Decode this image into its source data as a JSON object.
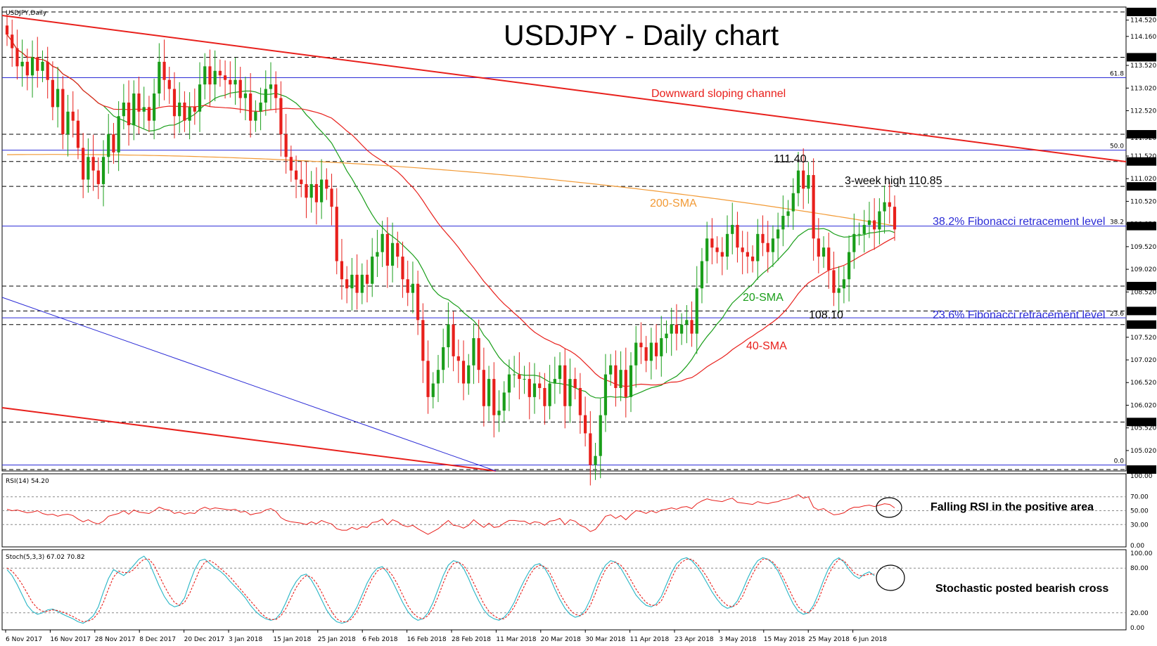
{
  "chart_data": [
    {
      "type": "candlestick",
      "symbol_label": "USDJPY,Daily",
      "title": "USDJPY - Daily chart",
      "ylim": [
        104.6,
        114.7
      ],
      "price_ticks": [
        "114.520",
        "114.160",
        "113.520",
        "113.020",
        "112.520",
        "111.920",
        "111.520",
        "111.020",
        "110.520",
        "110.020",
        "109.520",
        "109.020",
        "108.520",
        "107.520",
        "107.020",
        "106.520",
        "106.020",
        "105.520",
        "105.020"
      ],
      "highlight_levels": [
        {
          "label": "114.700",
          "value": 114.7,
          "style": "dash"
        },
        {
          "label": "113.700",
          "value": 113.7,
          "style": "dash"
        },
        {
          "label": "112.000",
          "value": 112.0,
          "style": "dash"
        },
        {
          "label": "111.400",
          "value": 111.4,
          "style": "dash"
        },
        {
          "label": "110.850",
          "value": 110.85,
          "style": "dash"
        },
        {
          "label": "108.650",
          "value": 108.65,
          "style": "dash"
        },
        {
          "label": "108.100",
          "value": 108.1,
          "style": "dash"
        },
        {
          "label": "107.800",
          "value": 107.8,
          "style": "dash"
        },
        {
          "label": "105.650",
          "value": 105.65,
          "style": "dash"
        },
        {
          "label": "104.600",
          "value": 104.6,
          "style": "dash"
        }
      ],
      "current_price": {
        "label": "109.974",
        "value": 109.974
      },
      "fibonacci": [
        {
          "label": "61.8",
          "value": 113.25
        },
        {
          "label": "50.0",
          "value": 111.65
        },
        {
          "label": "38.2",
          "value": 109.974
        },
        {
          "label": "23.6",
          "value": 107.95
        },
        {
          "label": "0.0",
          "value": 104.7
        }
      ],
      "x_labels": [
        "6 Nov 2017",
        "16 Nov 2017",
        "28 Nov 2017",
        "8 Dec 2017",
        "20 Dec 2017",
        "3 Jan 2018",
        "15 Jan 2018",
        "25 Jan 2018",
        "6 Feb 2018",
        "16 Feb 2018",
        "28 Feb 2018",
        "11 Mar 2018",
        "20 Mar 2018",
        "30 Mar 2018",
        "11 Apr 2018",
        "23 Apr 2018",
        "3 May 2018",
        "15 May 2018",
        "25 May 2018",
        "6 Jun 2018"
      ],
      "closes": [
        114.2,
        113.9,
        113.5,
        113.6,
        113.3,
        113.7,
        113.4,
        113.6,
        113.2,
        112.6,
        113.0,
        112.0,
        112.5,
        112.3,
        111.7,
        111.0,
        111.5,
        111.2,
        110.9,
        111.5,
        112.0,
        111.6,
        112.4,
        112.7,
        112.2,
        112.9,
        112.5,
        112.6,
        112.3,
        112.9,
        113.6,
        113.2,
        113.0,
        112.4,
        112.7,
        112.3,
        112.6,
        112.5,
        113.1,
        113.5,
        113.1,
        113.4,
        113.3,
        113.2,
        113.1,
        113.2,
        112.8,
        112.9,
        112.3,
        112.5,
        112.7,
        113.0,
        113.1,
        112.8,
        112.0,
        111.5,
        111.2,
        111.0,
        110.9,
        110.6,
        110.9,
        110.5,
        111.0,
        110.8,
        110.4,
        109.2,
        108.8,
        108.6,
        108.9,
        108.5,
        108.9,
        108.7,
        109.3,
        109.4,
        109.8,
        109.1,
        109.6,
        109.3,
        108.8,
        108.5,
        108.7,
        107.9,
        107.0,
        106.2,
        106.5,
        106.8,
        107.3,
        107.8,
        107.1,
        107.0,
        106.5,
        106.9,
        107.5,
        106.8,
        106.0,
        106.6,
        105.8,
        105.9,
        106.3,
        106.7,
        106.7,
        106.6,
        106.6,
        106.2,
        106.5,
        106.4,
        106.0,
        106.5,
        106.6,
        106.9,
        106.0,
        106.6,
        106.4,
        105.8,
        105.4,
        104.7,
        104.9,
        105.8,
        106.7,
        106.9,
        106.4,
        106.8,
        106.2,
        106.9,
        107.4,
        107.3,
        107.0,
        107.4,
        107.1,
        107.5,
        107.6,
        107.8,
        107.6,
        107.8,
        107.9,
        107.6,
        108.6,
        109.2,
        109.7,
        109.5,
        109.4,
        109.3,
        109.8,
        110.0,
        109.5,
        109.4,
        109.3,
        109.2,
        109.8,
        109.6,
        109.4,
        109.7,
        109.9,
        110.2,
        110.3,
        110.7,
        111.2,
        110.8,
        111.1,
        109.7,
        109.3,
        109.5,
        109.0,
        108.5,
        108.6,
        108.8,
        109.4,
        109.8,
        109.8,
        110.0,
        110.1,
        109.9,
        110.3,
        110.5,
        110.4,
        109.9
      ],
      "series": [
        {
          "name": "20-SMA",
          "color": "#1a9e1a"
        },
        {
          "name": "40-SMA",
          "color": "#e8201c"
        },
        {
          "name": "200-SMA",
          "color": "#f29a35"
        }
      ],
      "annotations": [
        {
          "text": "Downward sloping channel",
          "color": "#e8201c"
        },
        {
          "text": "200-SMA",
          "color": "#f29a35"
        },
        {
          "text": "20-SMA",
          "color": "#1a9e1a"
        },
        {
          "text": "40-SMA",
          "color": "#e8201c"
        },
        {
          "text": "111.40",
          "color": "#000000"
        },
        {
          "text": "3-week high 110.85",
          "color": "#000000"
        },
        {
          "text": "38.2% Fibonacci retracement level",
          "color": "#2b2bd6"
        },
        {
          "text": "23.6% Fibonacci retracement level",
          "color": "#2b2bd6"
        },
        {
          "text": "108.10",
          "color": "#000000"
        }
      ],
      "colors": {
        "up": "#1a9e1a",
        "down": "#e8201c",
        "channel": "#e8201c",
        "fib": "#2b2bd6"
      }
    },
    {
      "type": "line",
      "label": "RSI(14) 54.20",
      "ylim": [
        0,
        100
      ],
      "ticks": [
        "100.00",
        "70.00",
        "50.00",
        "30.00",
        "0.00"
      ],
      "values": [
        52,
        50,
        51,
        49,
        47,
        48,
        50,
        46,
        44,
        45,
        42,
        44,
        45,
        43,
        38,
        34,
        37,
        33,
        31,
        35,
        42,
        44,
        46,
        50,
        45,
        51,
        48,
        47,
        46,
        50,
        55,
        52,
        51,
        46,
        48,
        45,
        47,
        46,
        52,
        55,
        52,
        54,
        53,
        52,
        51,
        52,
        48,
        49,
        44,
        46,
        47,
        51,
        53,
        49,
        40,
        36,
        34,
        33,
        32,
        30,
        34,
        31,
        36,
        33,
        31,
        24,
        22,
        22,
        26,
        23,
        27,
        26,
        33,
        34,
        38,
        30,
        37,
        34,
        29,
        27,
        29,
        24,
        20,
        16,
        20,
        24,
        30,
        36,
        29,
        28,
        25,
        29,
        37,
        31,
        26,
        32,
        26,
        27,
        32,
        36,
        36,
        35,
        35,
        31,
        34,
        33,
        29,
        35,
        36,
        39,
        30,
        37,
        35,
        29,
        26,
        20,
        23,
        32,
        42,
        44,
        39,
        43,
        37,
        44,
        50,
        49,
        46,
        50,
        47,
        51,
        52,
        54,
        52,
        55,
        56,
        53,
        60,
        64,
        67,
        65,
        64,
        63,
        66,
        68,
        62,
        61,
        60,
        59,
        63,
        61,
        60,
        62,
        63,
        66,
        67,
        70,
        73,
        68,
        70,
        55,
        51,
        53,
        48,
        44,
        45,
        47,
        52,
        55,
        55,
        57,
        58,
        56,
        58,
        60,
        59,
        54
      ],
      "annotation": "Falling RSI in the positive area",
      "color": "#e8201c"
    },
    {
      "type": "line",
      "label": "Stoch(5,3,3) 67.02 70.82",
      "ylim": [
        0,
        100
      ],
      "ticks": [
        "100.00",
        "80.00",
        "20.00",
        "0.00"
      ],
      "series": [
        {
          "name": "%K",
          "values": [
            78,
            70,
            58,
            44,
            30,
            22,
            18,
            20,
            24,
            25,
            22,
            18,
            15,
            12,
            8,
            6,
            10,
            16,
            28,
            48,
            66,
            78,
            74,
            70,
            76,
            84,
            92,
            96,
            88,
            72,
            56,
            42,
            32,
            28,
            30,
            40,
            60,
            78,
            90,
            92,
            86,
            80,
            76,
            70,
            62,
            55,
            48,
            40,
            30,
            22,
            16,
            12,
            10,
            12,
            20,
            34,
            50,
            62,
            70,
            72,
            64,
            52,
            38,
            24,
            14,
            8,
            6,
            8,
            16,
            28,
            44,
            60,
            72,
            80,
            82,
            74,
            62,
            48,
            34,
            22,
            14,
            10,
            12,
            20,
            34,
            52,
            70,
            84,
            90,
            88,
            80,
            66,
            50,
            36,
            24,
            16,
            12,
            10,
            14,
            22,
            34,
            50,
            64,
            76,
            84,
            86,
            80,
            68,
            52,
            38,
            26,
            18,
            14,
            16,
            24,
            38,
            56,
            72,
            84,
            90,
            88,
            80,
            68,
            56,
            44,
            36,
            30,
            28,
            32,
            42,
            58,
            74,
            86,
            92,
            94,
            90,
            82,
            72,
            60,
            48,
            38,
            30,
            26,
            28,
            36,
            50,
            66,
            80,
            90,
            94,
            92,
            86,
            76,
            62,
            46,
            32,
            22,
            18,
            20,
            30,
            46,
            64,
            80,
            90,
            94,
            88,
            78,
            70,
            66,
            72,
            75,
            70
          ]
        },
        {
          "name": "%D",
          "values": [
            80,
            76,
            68,
            58,
            46,
            34,
            26,
            22,
            22,
            24,
            23,
            21,
            18,
            15,
            11,
            8,
            9,
            12,
            20,
            34,
            52,
            68,
            76,
            74,
            74,
            78,
            86,
            92,
            92,
            84,
            70,
            56,
            44,
            34,
            30,
            34,
            46,
            62,
            78,
            88,
            90,
            86,
            80,
            74,
            68,
            60,
            52,
            44,
            36,
            28,
            20,
            14,
            11,
            11,
            16,
            26,
            40,
            54,
            64,
            70,
            68,
            60,
            48,
            34,
            22,
            12,
            8,
            8,
            12,
            22,
            36,
            52,
            66,
            76,
            80,
            78,
            70,
            58,
            44,
            30,
            20,
            14,
            12,
            16,
            26,
            42,
            60,
            76,
            86,
            88,
            84,
            74,
            60,
            46,
            32,
            22,
            16,
            12,
            12,
            18,
            28,
            42,
            56,
            70,
            80,
            84,
            82,
            74,
            60,
            46,
            34,
            24,
            18,
            16,
            20,
            30,
            46,
            64,
            78,
            86,
            88,
            84,
            76,
            64,
            52,
            42,
            34,
            30,
            30,
            36,
            50,
            66,
            80,
            88,
            92,
            92,
            86,
            78,
            68,
            56,
            44,
            36,
            30,
            28,
            32,
            42,
            58,
            72,
            84,
            92,
            92,
            88,
            80,
            68,
            54,
            40,
            28,
            22,
            20,
            26,
            38,
            56,
            72,
            84,
            92,
            90,
            82,
            74,
            70,
            70,
            72,
            72
          ]
        }
      ],
      "annotation": "Stochastic posted bearish cross",
      "colors": {
        "%K": "#27b5c5",
        "%D": "#e8201c"
      }
    }
  ]
}
